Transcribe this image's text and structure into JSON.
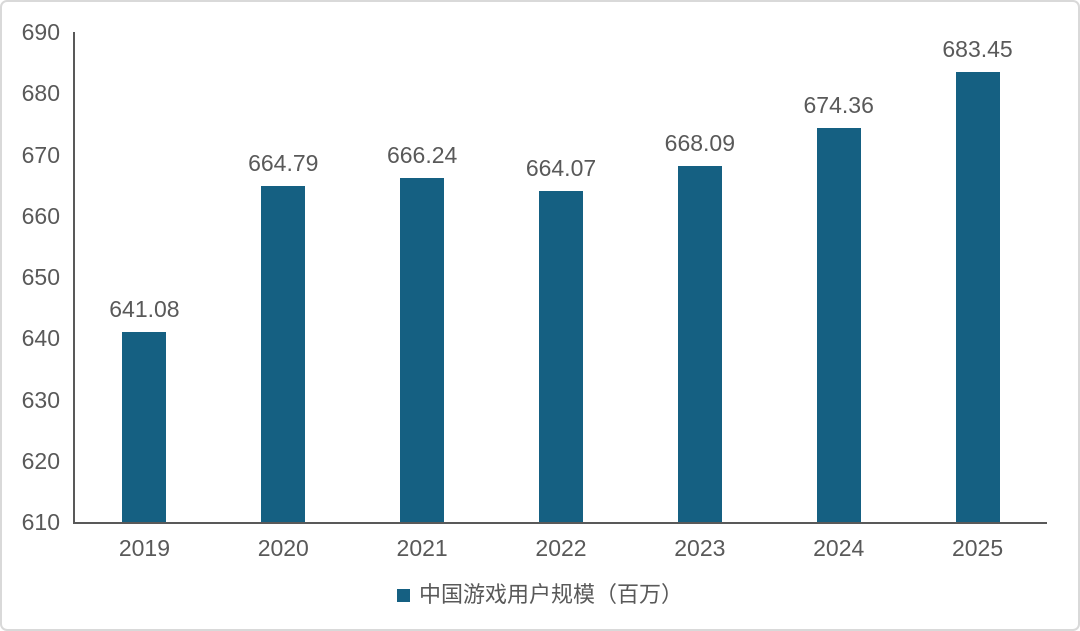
{
  "chart_data": {
    "type": "bar",
    "title": "",
    "xlabel": "",
    "ylabel": "",
    "categories": [
      "2019",
      "2020",
      "2021",
      "2022",
      "2023",
      "2024",
      "2025"
    ],
    "values": [
      641.08,
      664.79,
      666.24,
      664.07,
      668.09,
      674.36,
      683.45
    ],
    "value_labels": [
      "641.08",
      "664.79",
      "666.24",
      "664.07",
      "668.09",
      "674.36",
      "683.45"
    ],
    "series_name": "中国游戏用户规模（百万）",
    "ylim": [
      610,
      690
    ],
    "ytick_step": 10,
    "ytick_labels": [
      "610",
      "620",
      "630",
      "640",
      "650",
      "660",
      "670",
      "680",
      "690"
    ],
    "grid": false,
    "legend_position": "bottom",
    "bar_color": "#156082",
    "axis_color": "#595959",
    "text_color": "#595959",
    "border_color": "#d9d9d9",
    "background_color": "#ffffff"
  }
}
